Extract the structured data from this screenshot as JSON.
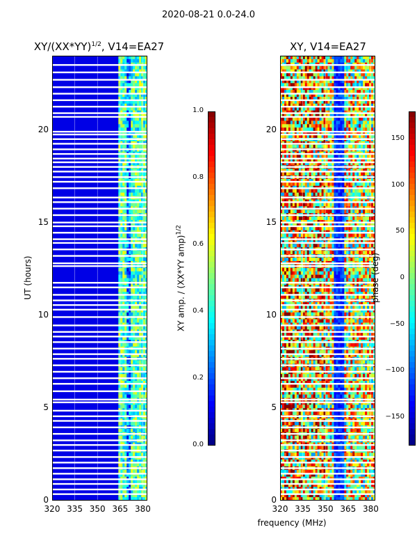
{
  "suptitle": "2020-08-21 0.0-24.0",
  "xlabel": "frequency (MHz)",
  "chart_data": [
    {
      "type": "heatmap",
      "title_main": "XY/(XX*YY)",
      "title_sup": "1/2",
      "title_rest": ", V14=EA27",
      "ylabel": "UT (hours)",
      "xlim": [
        320,
        383
      ],
      "ylim": [
        0,
        24
      ],
      "xticks": [
        "320",
        "335",
        "350",
        "365",
        "380"
      ],
      "xtick_values": [
        320,
        335,
        350,
        365,
        380
      ],
      "yticks": [
        "0",
        "5",
        "10",
        "15",
        "20"
      ],
      "ytick_values": [
        0,
        5,
        10,
        15,
        20
      ],
      "colorbar": {
        "label_main": "XY amp. / (XX*YY amp)",
        "label_sup": "1/2",
        "range": [
          0.0,
          1.0
        ],
        "ticks": [
          "0.0",
          "0.2",
          "0.4",
          "0.6",
          "0.8",
          "1.0"
        ],
        "tick_values": [
          0.0,
          0.2,
          0.4,
          0.6,
          0.8,
          1.0
        ]
      },
      "description_levels": {
        "background": 0.1,
        "band_365_382": 0.45
      }
    },
    {
      "type": "heatmap",
      "title": "XY, V14=EA27",
      "ylabel": "",
      "xlim": [
        320,
        383
      ],
      "ylim": [
        0,
        24
      ],
      "xticks": [
        "320",
        "335",
        "350",
        "365",
        "380"
      ],
      "xtick_values": [
        320,
        335,
        350,
        365,
        380
      ],
      "yticks": [
        "0",
        "5",
        "10",
        "15",
        "20"
      ],
      "ytick_values": [
        0,
        5,
        10,
        15,
        20
      ],
      "colorbar": {
        "label": "phase (deg)",
        "range": [
          -180,
          180
        ],
        "ticks": [
          "−150",
          "−100",
          "−50",
          "0",
          "50",
          "100",
          "150"
        ],
        "tick_values": [
          -150,
          -100,
          -50,
          0,
          50,
          100,
          150
        ]
      }
    }
  ],
  "flagged_hours": [
    0.35,
    0.6,
    0.9,
    1.15,
    1.45,
    1.75,
    2.05,
    2.35,
    2.7,
    3.0,
    3.25,
    3.6,
    3.95,
    4.3,
    4.55,
    4.85,
    5.3,
    5.45,
    5.9,
    6.3,
    6.6,
    6.95,
    7.3,
    7.65,
    7.9,
    8.2,
    8.55,
    8.85,
    9.1,
    9.45,
    9.9,
    10.3,
    10.55,
    10.8,
    11.1,
    11.5,
    11.75,
    12.65,
    12.8,
    13.2,
    13.55,
    13.9,
    14.1,
    14.45,
    14.8,
    15.0,
    15.4,
    15.75,
    16.1,
    16.35,
    16.85,
    17.2,
    17.45,
    17.75,
    18.0,
    18.25,
    18.45,
    18.7,
    18.95,
    19.25,
    19.5,
    19.75,
    19.9,
    20.7,
    20.9,
    21.25,
    21.6,
    21.95,
    22.3,
    22.7,
    23.1,
    23.5
  ]
}
